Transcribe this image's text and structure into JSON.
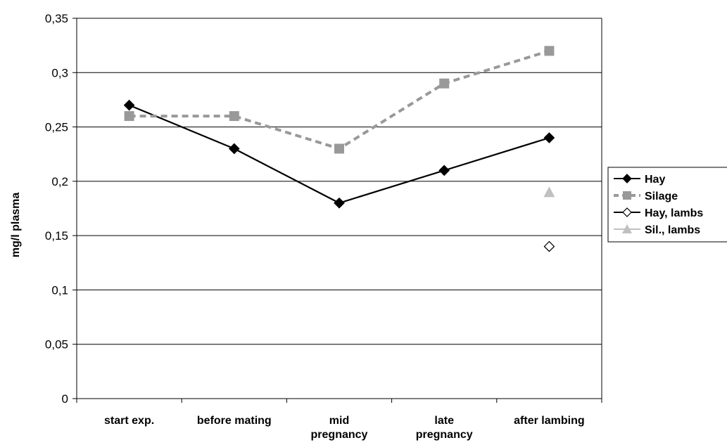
{
  "chart_data": {
    "type": "line",
    "title": "",
    "xlabel": "",
    "ylabel": "mg/l plasma",
    "ylim": [
      0,
      0.35
    ],
    "yticks": [
      "0",
      "0,05",
      "0,1",
      "0,15",
      "0,2",
      "0,25",
      "0,3",
      "0,35"
    ],
    "categories": [
      [
        "start exp."
      ],
      [
        "before mating"
      ],
      [
        "mid",
        "pregnancy"
      ],
      [
        "late",
        "pregnancy"
      ],
      [
        "after lambing"
      ]
    ],
    "grid": true,
    "legend_position": "right",
    "series": [
      {
        "name": "Hay",
        "values": [
          0.27,
          0.23,
          0.18,
          0.21,
          0.24
        ],
        "color": "#000000",
        "marker": "filled-diamond",
        "line": "solid"
      },
      {
        "name": "Silage",
        "values": [
          0.26,
          0.26,
          0.23,
          0.29,
          0.32
        ],
        "color": "#999999",
        "marker": "square",
        "line": "dashed"
      },
      {
        "name": "Hay, lambs",
        "values": [
          null,
          null,
          null,
          null,
          0.14
        ],
        "color": "#000000",
        "marker": "open-diamond",
        "line": "solid"
      },
      {
        "name": "Sil., lambs",
        "values": [
          null,
          null,
          null,
          null,
          0.19
        ],
        "color": "#c0c0c0",
        "marker": "triangle",
        "line": "solid"
      }
    ]
  }
}
